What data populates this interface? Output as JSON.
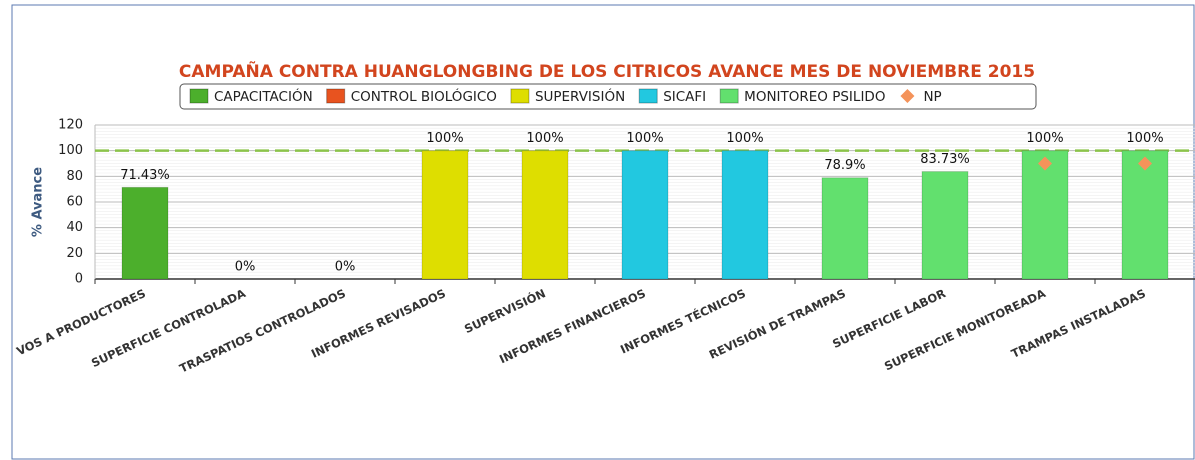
{
  "chart_data": {
    "type": "bar",
    "title": "CAMPAÑA CONTRA HUANGLONGBING DE LOS CITRICOS AVANCE MES DE NOVIEMBRE 2015",
    "y_label": "% Avance",
    "categories": [
      "VOS A PRODUCTORES",
      "SUPERFICIE CONTROLADA",
      "TRASPATIOS CONTROLADOS",
      "INFORMES REVISADOS",
      "SUPERVISIÓN",
      "INFORMES FINANCIEROS",
      "INFORMES TÉCNICOS",
      "REVISIÓN DE TRAMPAS",
      "SUPERFICIE LABOR",
      "SUPERFICIE MONITOREADA",
      "TRAMPAS INSTALADAS"
    ],
    "series": [
      {
        "name": "CAPACITACIÓN",
        "color": "#4caf2c",
        "values": [
          71.43,
          null,
          null,
          null,
          null,
          null,
          null,
          null,
          null,
          null,
          null
        ],
        "value_labels": [
          "71.43%",
          null,
          null,
          null,
          null,
          null,
          null,
          null,
          null,
          null,
          null
        ]
      },
      {
        "name": "CONTROL BIOLÓGICO",
        "color": "#e8531f",
        "values": [
          null,
          0,
          0,
          null,
          null,
          null,
          null,
          null,
          null,
          null,
          null
        ],
        "value_labels": [
          null,
          "0%",
          "0%",
          null,
          null,
          null,
          null,
          null,
          null,
          null,
          null
        ]
      },
      {
        "name": "SUPERVISIÓN",
        "color": "#dede00",
        "values": [
          null,
          null,
          null,
          100,
          100,
          null,
          null,
          null,
          null,
          null,
          null
        ],
        "value_labels": [
          null,
          null,
          null,
          "100%",
          "100%",
          null,
          null,
          null,
          null,
          null,
          null
        ]
      },
      {
        "name": "SICAFI",
        "color": "#22c8e0",
        "values": [
          null,
          null,
          null,
          null,
          null,
          100,
          100,
          null,
          null,
          null,
          null
        ],
        "value_labels": [
          null,
          null,
          null,
          null,
          null,
          "100%",
          "100%",
          null,
          null,
          null,
          null
        ]
      },
      {
        "name": "MONITOREO PSILIDO",
        "color": "#62e06e",
        "values": [
          null,
          null,
          null,
          null,
          null,
          null,
          null,
          78.9,
          83.73,
          100,
          100
        ],
        "value_labels": [
          null,
          null,
          null,
          null,
          null,
          null,
          null,
          "78.9%",
          "83.73%",
          "100%",
          "100%"
        ]
      },
      {
        "name": "NP",
        "color": "#f4935a",
        "marker": "diamond",
        "values": [
          null,
          null,
          null,
          null,
          null,
          null,
          null,
          null,
          null,
          90,
          90
        ]
      }
    ],
    "target_line": {
      "value": 100,
      "color": "#8bc34a"
    },
    "ylim": [
      0,
      120
    ],
    "yticks": [
      0,
      20,
      40,
      60,
      80,
      100,
      120
    ],
    "grid": true
  }
}
